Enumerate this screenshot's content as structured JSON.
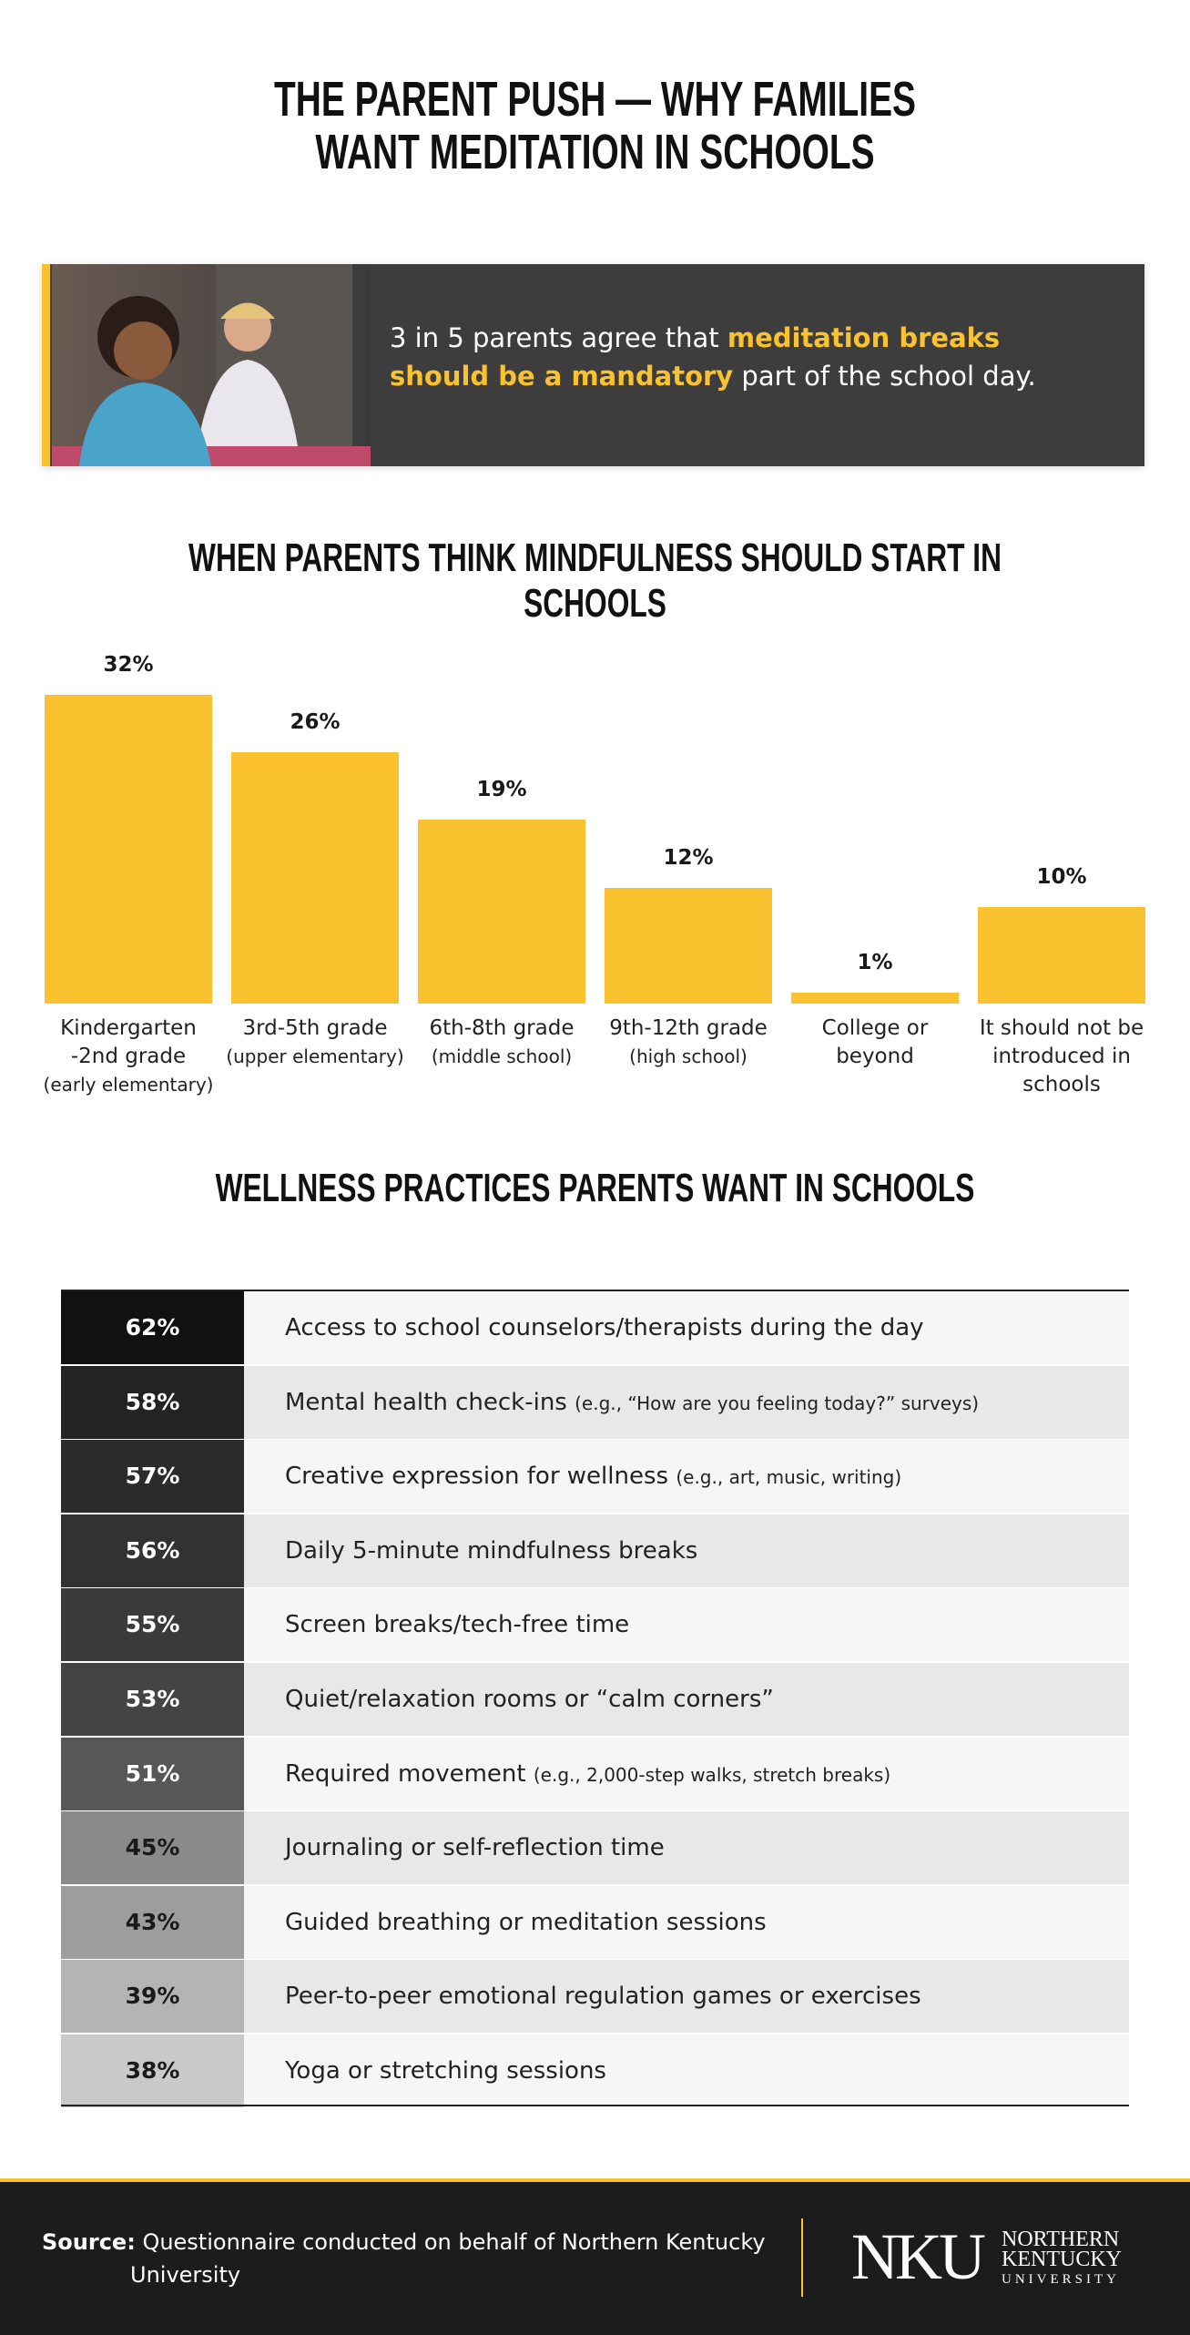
{
  "title": "THE PARENT PUSH — WHY FAMILIES WANT MEDITATION IN SCHOOLS",
  "callout": {
    "parts": [
      "3 in 5 parents agree that ",
      "meditation breaks should be a mandatory",
      " part of the school day."
    ]
  },
  "chart_data": {
    "type": "bar",
    "title": "WHEN PARENTS THINK MINDFULNESS SHOULD START IN SCHOOLS",
    "categories": [
      "Kindergarten -2nd grade",
      "3rd-5th grade",
      "6th-8th grade",
      "9th-12th grade",
      "College or beyond",
      "It should not be introduced in schools"
    ],
    "category_notes": [
      "(early elementary)",
      "(upper elementary)",
      "(middle school)",
      "(high school)",
      null,
      null
    ],
    "values": [
      32,
      26,
      19,
      12,
      1,
      10
    ],
    "value_labels": [
      "32%",
      "26%",
      "19%",
      "12%",
      "1%",
      "10%"
    ],
    "color": "#fbc22f"
  },
  "table": {
    "title": "WELLNESS PRACTICES PARENTS WANT IN SCHOOLS",
    "rows": [
      {
        "percent": "62%",
        "text": "Access to school counselors/therapists during the day",
        "color": "#111111"
      },
      {
        "percent": "58%",
        "text": "Mental health check-ins",
        "note": "(e.g., “How are you feeling today?” surveys)",
        "color": "#232323"
      },
      {
        "percent": "57%",
        "text": "Creative expression for wellness",
        "note": "(e.g., art, music, writing)",
        "color": "#2b2b2b"
      },
      {
        "percent": "56%",
        "text": "Daily 5-minute mindfulness breaks",
        "color": "#323232"
      },
      {
        "percent": "55%",
        "text": "Screen breaks/tech-free time",
        "color": "#3a3a3a"
      },
      {
        "percent": "53%",
        "text": "Quiet/relaxation rooms or “calm corners”",
        "color": "#444444"
      },
      {
        "percent": "51%",
        "text": "Required movement",
        "note": "(e.g., 2,000-step walks, stretch breaks)",
        "color": "#575757"
      },
      {
        "percent": "45%",
        "text": "Journaling or self-reflection time",
        "color": "#8a8a8a"
      },
      {
        "percent": "43%",
        "text": "Guided breathing or meditation sessions",
        "color": "#9d9d9d"
      },
      {
        "percent": "39%",
        "text": "Peer-to-peer emotional regulation games or exercises",
        "color": "#b4b4b4"
      },
      {
        "percent": "38%",
        "text": "Yoga or stretching sessions",
        "color": "#c9c9c9"
      }
    ]
  },
  "footer": {
    "source_label": "Source:",
    "source_text": "Questionnaire conducted on behalf of Northern Kentucky University",
    "logo": "NKU",
    "logo_lines": [
      "NORTHERN",
      "KENTUCKY",
      "UNIVERSITY"
    ]
  }
}
